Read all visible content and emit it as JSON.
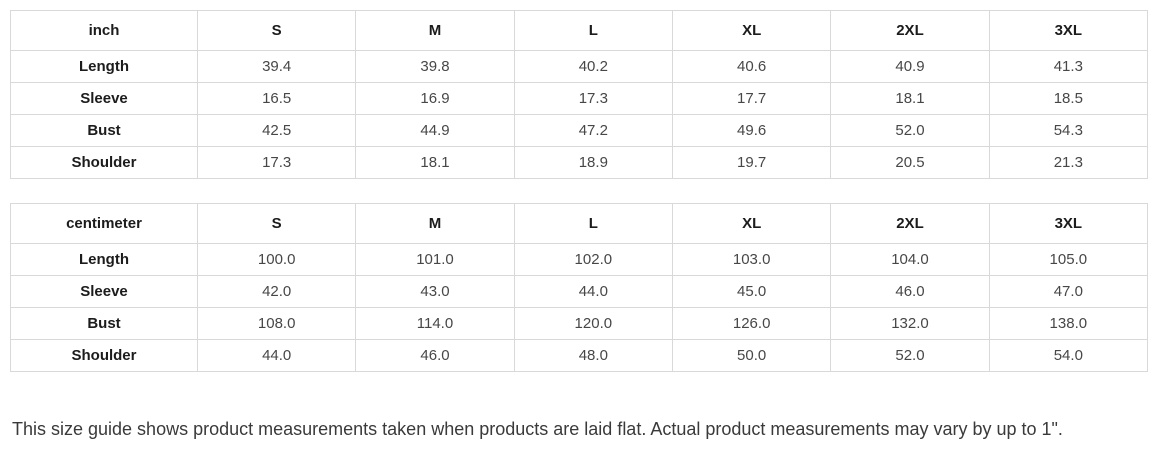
{
  "tables": [
    {
      "unit_header": "inch",
      "size_headers": [
        "S",
        "M",
        "L",
        "XL",
        "2XL",
        "3XL"
      ],
      "rows": [
        {
          "label": "Length",
          "values": [
            "39.4",
            "39.8",
            "40.2",
            "40.6",
            "40.9",
            "41.3"
          ]
        },
        {
          "label": "Sleeve",
          "values": [
            "16.5",
            "16.9",
            "17.3",
            "17.7",
            "18.1",
            "18.5"
          ]
        },
        {
          "label": "Bust",
          "values": [
            "42.5",
            "44.9",
            "47.2",
            "49.6",
            "52.0",
            "54.3"
          ]
        },
        {
          "label": "Shoulder",
          "values": [
            "17.3",
            "18.1",
            "18.9",
            "19.7",
            "20.5",
            "21.3"
          ]
        }
      ]
    },
    {
      "unit_header": "centimeter",
      "size_headers": [
        "S",
        "M",
        "L",
        "XL",
        "2XL",
        "3XL"
      ],
      "rows": [
        {
          "label": "Length",
          "values": [
            "100.0",
            "101.0",
            "102.0",
            "103.0",
            "104.0",
            "105.0"
          ]
        },
        {
          "label": "Sleeve",
          "values": [
            "42.0",
            "43.0",
            "44.0",
            "45.0",
            "46.0",
            "47.0"
          ]
        },
        {
          "label": "Bust",
          "values": [
            "108.0",
            "114.0",
            "120.0",
            "126.0",
            "132.0",
            "138.0"
          ]
        },
        {
          "label": "Shoulder",
          "values": [
            "44.0",
            "46.0",
            "48.0",
            "50.0",
            "52.0",
            "54.0"
          ]
        }
      ]
    }
  ],
  "footer_note": "This size guide shows product measurements taken when products are laid flat. Actual product measurements may vary by up to 1\".",
  "colors": {
    "border": "#d9d9d9",
    "header_text": "#1c1c1c",
    "value_text": "#474747",
    "note_text": "#3a3a3a"
  }
}
